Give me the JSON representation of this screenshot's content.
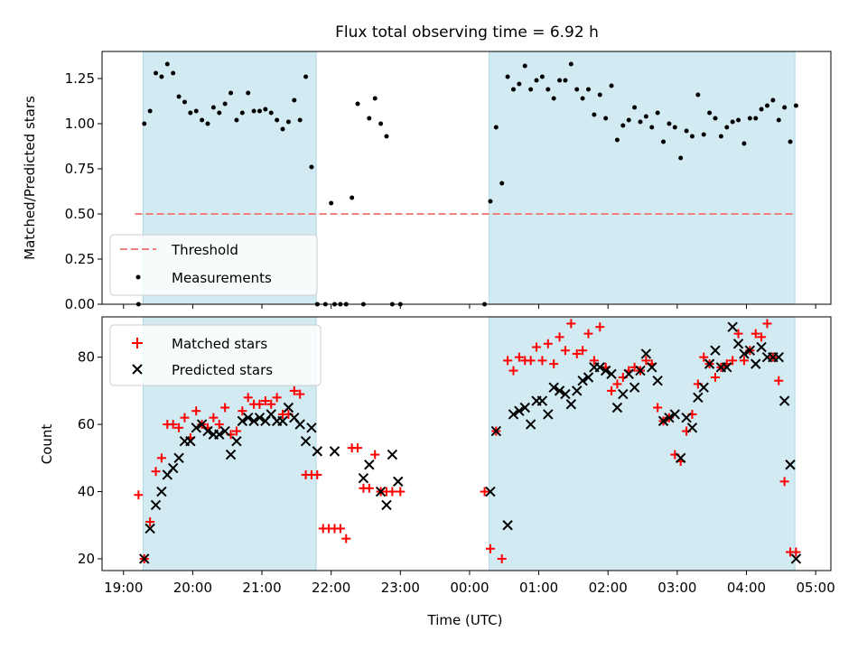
{
  "chart_data": [
    {
      "type": "scatter",
      "title": "Flux total observing time = 6.92 h",
      "xlabel": "",
      "ylabel": "Matched/Predicted stars",
      "ylim": [
        0,
        1.4
      ],
      "yticks": [
        "0.00",
        "0.25",
        "0.50",
        "0.75",
        "1.00",
        "1.25"
      ],
      "ytick_values": [
        0,
        0.25,
        0.5,
        0.75,
        1.0,
        1.25
      ],
      "legend_position": "lower-left",
      "threshold": {
        "name": "Threshold",
        "value": 0.5,
        "x_start": "19:10",
        "x_end": "04:40",
        "color": "#f08080"
      },
      "shaded_regions": [
        {
          "start": "19:17",
          "end": "21:47",
          "color": "#add8e6"
        },
        {
          "start": "00:17",
          "end": "04:42",
          "color": "#add8e6"
        }
      ],
      "series": [
        {
          "name": "Measurements",
          "color": "#000000",
          "x": [
            "19:13",
            "19:18",
            "19:23",
            "19:28",
            "19:33",
            "19:38",
            "19:43",
            "19:48",
            "19:53",
            "19:58",
            "20:03",
            "20:08",
            "20:13",
            "20:18",
            "20:23",
            "20:28",
            "20:33",
            "20:38",
            "20:43",
            "20:48",
            "20:53",
            "20:58",
            "21:03",
            "21:08",
            "21:13",
            "21:18",
            "21:23",
            "21:28",
            "21:33",
            "21:38",
            "21:43",
            "21:48",
            "21:55",
            "22:00",
            "22:03",
            "22:08",
            "22:13",
            "22:18",
            "22:23",
            "22:28",
            "22:33",
            "22:38",
            "22:43",
            "22:48",
            "22:53",
            "23:00",
            "00:13",
            "00:18",
            "00:23",
            "00:28",
            "00:33",
            "00:38",
            "00:43",
            "00:48",
            "00:53",
            "00:58",
            "01:03",
            "01:08",
            "01:13",
            "01:18",
            "01:23",
            "01:28",
            "01:33",
            "01:38",
            "01:43",
            "01:48",
            "01:53",
            "01:58",
            "02:03",
            "02:08",
            "02:13",
            "02:18",
            "02:23",
            "02:28",
            "02:33",
            "02:38",
            "02:43",
            "02:48",
            "02:53",
            "02:58",
            "03:03",
            "03:08",
            "03:13",
            "03:18",
            "03:23",
            "03:28",
            "03:33",
            "03:38",
            "03:43",
            "03:48",
            "03:53",
            "03:58",
            "04:03",
            "04:08",
            "04:13",
            "04:18",
            "04:23",
            "04:28",
            "04:33",
            "04:38",
            "04:43"
          ],
          "y": [
            0.0,
            1.0,
            1.07,
            1.28,
            1.26,
            1.33,
            1.28,
            1.15,
            1.12,
            1.06,
            1.07,
            1.02,
            1.0,
            1.09,
            1.06,
            1.11,
            1.17,
            1.02,
            1.06,
            1.17,
            1.07,
            1.07,
            1.08,
            1.06,
            1.02,
            0.97,
            1.01,
            1.13,
            1.02,
            1.26,
            0.76,
            0.0,
            0.0,
            0.56,
            0.0,
            0.0,
            0.0,
            0.59,
            1.11,
            0.0,
            1.03,
            1.14,
            1.0,
            0.93,
            0.0,
            0.0,
            0.0,
            0.57,
            0.98,
            0.67,
            1.26,
            1.19,
            1.22,
            1.32,
            1.19,
            1.24,
            1.26,
            1.19,
            1.14,
            1.24,
            1.24,
            1.33,
            1.19,
            1.14,
            1.19,
            1.05,
            1.16,
            1.03,
            1.21,
            0.91,
            0.99,
            1.02,
            1.09,
            1.01,
            1.04,
            0.98,
            1.06,
            0.9,
            1.0,
            0.98,
            0.81,
            0.96,
            0.93,
            1.16,
            0.94,
            1.06,
            1.03,
            0.93,
            0.98,
            1.01,
            1.02,
            0.89,
            1.03,
            1.03,
            1.08,
            1.1,
            1.13,
            1.02,
            1.09,
            0.9,
            1.1
          ]
        }
      ]
    },
    {
      "type": "scatter",
      "title": "",
      "xlabel": "Time (UTC)",
      "ylabel": "Count",
      "ylim": [
        16.5,
        92
      ],
      "yticks": [
        "20",
        "40",
        "60",
        "80"
      ],
      "ytick_values": [
        20,
        40,
        60,
        80
      ],
      "xticks": [
        "19:00",
        "20:00",
        "21:00",
        "22:00",
        "23:00",
        "00:00",
        "01:00",
        "02:00",
        "03:00",
        "04:00",
        "05:00"
      ],
      "legend_position": "upper-left",
      "shaded_regions": [
        {
          "start": "19:17",
          "end": "21:47",
          "color": "#add8e6"
        },
        {
          "start": "00:17",
          "end": "04:42",
          "color": "#add8e6"
        }
      ],
      "series": [
        {
          "name": "Matched stars",
          "marker": "+",
          "color": "#ff0000",
          "x": [
            "19:13",
            "19:18",
            "19:23",
            "19:28",
            "19:33",
            "19:38",
            "19:43",
            "19:48",
            "19:53",
            "19:58",
            "20:03",
            "20:08",
            "20:13",
            "20:18",
            "20:23",
            "20:28",
            "20:33",
            "20:38",
            "20:43",
            "20:48",
            "20:53",
            "20:58",
            "21:03",
            "21:08",
            "21:13",
            "21:18",
            "21:23",
            "21:28",
            "21:33",
            "21:38",
            "21:43",
            "21:48",
            "21:53",
            "21:58",
            "22:03",
            "22:08",
            "22:13",
            "22:18",
            "22:23",
            "22:28",
            "22:33",
            "22:38",
            "22:43",
            "22:48",
            "22:53",
            "23:00",
            "00:13",
            "00:18",
            "00:23",
            "00:28",
            "00:33",
            "00:38",
            "00:43",
            "00:48",
            "00:53",
            "00:58",
            "01:03",
            "01:08",
            "01:13",
            "01:18",
            "01:23",
            "01:28",
            "01:33",
            "01:38",
            "01:43",
            "01:48",
            "01:53",
            "01:58",
            "02:03",
            "02:08",
            "02:13",
            "02:18",
            "02:23",
            "02:28",
            "02:33",
            "02:38",
            "02:43",
            "02:48",
            "02:53",
            "02:58",
            "03:03",
            "03:08",
            "03:13",
            "03:18",
            "03:23",
            "03:28",
            "03:33",
            "03:38",
            "03:43",
            "03:48",
            "03:53",
            "03:58",
            "04:03",
            "04:08",
            "04:13",
            "04:18",
            "04:23",
            "04:28",
            "04:33",
            "04:38",
            "04:43"
          ],
          "y": [
            39,
            20,
            31,
            46,
            50,
            60,
            60,
            59,
            62,
            56,
            64,
            60,
            59,
            62,
            60,
            65,
            57,
            58,
            64,
            68,
            66,
            66,
            67,
            66,
            68,
            63,
            63,
            70,
            69,
            45,
            45,
            45,
            29,
            29,
            29,
            29,
            26,
            53,
            53,
            41,
            41,
            51,
            40,
            40,
            40,
            40,
            40,
            23,
            58,
            20,
            79,
            76,
            80,
            79,
            79,
            83,
            79,
            84,
            78,
            86,
            82,
            90,
            81,
            82,
            87,
            79,
            89,
            77,
            70,
            72,
            74,
            76,
            77,
            76,
            79,
            78,
            65,
            61,
            62,
            51,
            49,
            58,
            63,
            72,
            80,
            78,
            74,
            77,
            78,
            79,
            87,
            79,
            82,
            87,
            86,
            90,
            80,
            73,
            43,
            22,
            22
          ]
        },
        {
          "name": "Predicted stars",
          "marker": "x",
          "color": "#000000",
          "x": [
            "19:18",
            "19:23",
            "19:28",
            "19:33",
            "19:38",
            "19:43",
            "19:48",
            "19:53",
            "19:58",
            "20:03",
            "20:08",
            "20:13",
            "20:18",
            "20:23",
            "20:28",
            "20:33",
            "20:38",
            "20:43",
            "20:48",
            "20:53",
            "20:58",
            "21:03",
            "21:08",
            "21:13",
            "21:18",
            "21:23",
            "21:28",
            "21:33",
            "21:38",
            "21:43",
            "21:48",
            "22:03",
            "22:28",
            "22:33",
            "22:43",
            "22:48",
            "22:53",
            "22:58",
            "00:18",
            "00:23",
            "00:33",
            "00:38",
            "00:43",
            "00:48",
            "00:53",
            "00:58",
            "01:03",
            "01:08",
            "01:13",
            "01:18",
            "01:23",
            "01:28",
            "01:33",
            "01:38",
            "01:43",
            "01:48",
            "01:53",
            "01:58",
            "02:03",
            "02:08",
            "02:13",
            "02:18",
            "02:23",
            "02:28",
            "02:33",
            "02:38",
            "02:43",
            "02:48",
            "02:53",
            "02:58",
            "03:03",
            "03:08",
            "03:13",
            "03:18",
            "03:23",
            "03:28",
            "03:33",
            "03:38",
            "03:43",
            "03:48",
            "03:53",
            "03:58",
            "04:03",
            "04:08",
            "04:13",
            "04:18",
            "04:23",
            "04:28",
            "04:33",
            "04:38",
            "04:43"
          ],
          "y": [
            20,
            29,
            36,
            40,
            45,
            47,
            50,
            55,
            55,
            59,
            60,
            58,
            57,
            57,
            58,
            51,
            55,
            61,
            62,
            61,
            62,
            61,
            63,
            61,
            61,
            65,
            62,
            60,
            55,
            59,
            52,
            52,
            44,
            48,
            40,
            36,
            51,
            43,
            40,
            58,
            30,
            63,
            64,
            65,
            60,
            67,
            67,
            63,
            71,
            70,
            69,
            66,
            70,
            73,
            74,
            77,
            77,
            76,
            75,
            65,
            69,
            75,
            71,
            76,
            81,
            77,
            73,
            61,
            62,
            63,
            50,
            62,
            59,
            68,
            71,
            78,
            82,
            77,
            77,
            89,
            84,
            81,
            82,
            78,
            83,
            80,
            80,
            80,
            67,
            48,
            20
          ]
        }
      ]
    }
  ]
}
